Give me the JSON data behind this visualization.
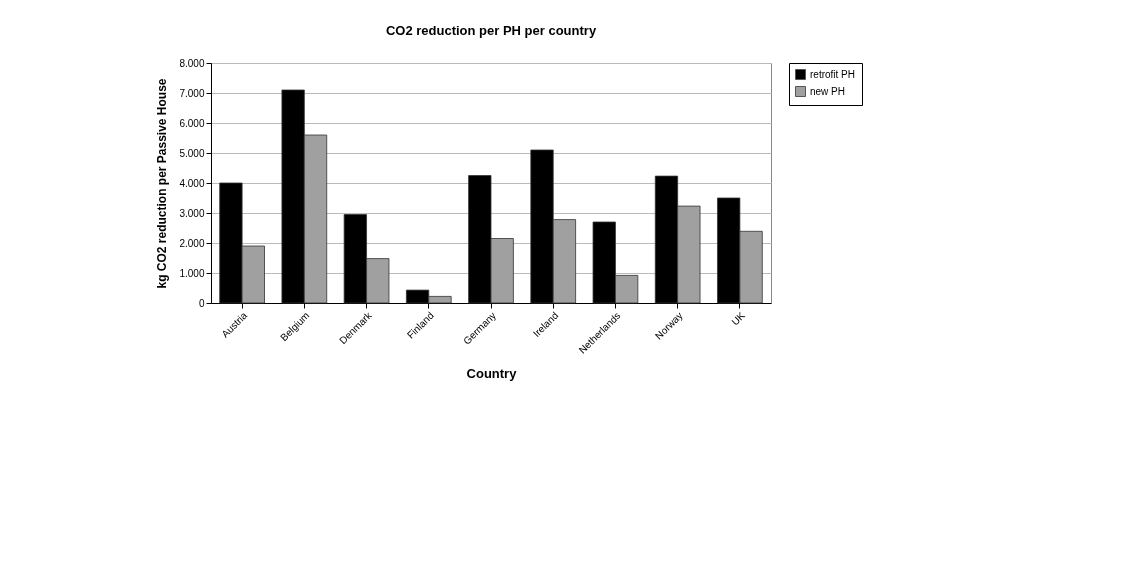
{
  "chart_data": {
    "type": "bar",
    "title": "CO2 reduction per PH per country",
    "xlabel": "Country",
    "ylabel": "kg CO2 reduction per Passive House",
    "categories": [
      "Austria",
      "Belgium",
      "Denmark",
      "Finland",
      "Germany",
      "Ireland",
      "Netherlands",
      "Norway",
      "UK"
    ],
    "series": [
      {
        "name": "retrofit PH",
        "color": "#000000",
        "values": [
          4000,
          7100,
          2950,
          430,
          4250,
          5100,
          2700,
          4230,
          3500
        ]
      },
      {
        "name": "new PH",
        "color": "#a0a0a0",
        "values": [
          1900,
          5600,
          1480,
          220,
          2150,
          2780,
          920,
          3230,
          2390
        ]
      }
    ],
    "ylim": [
      0,
      8000
    ],
    "yticks": [
      {
        "value": 0,
        "label": "0"
      },
      {
        "value": 1000,
        "label": "1.000"
      },
      {
        "value": 2000,
        "label": "2.000"
      },
      {
        "value": 3000,
        "label": "3.000"
      },
      {
        "value": 4000,
        "label": "4.000"
      },
      {
        "value": 5000,
        "label": "5.000"
      },
      {
        "value": 6000,
        "label": "6.000"
      },
      {
        "value": 7000,
        "label": "7.000"
      },
      {
        "value": 8000,
        "label": "8.000"
      }
    ],
    "grid": "y",
    "legend": "right"
  }
}
